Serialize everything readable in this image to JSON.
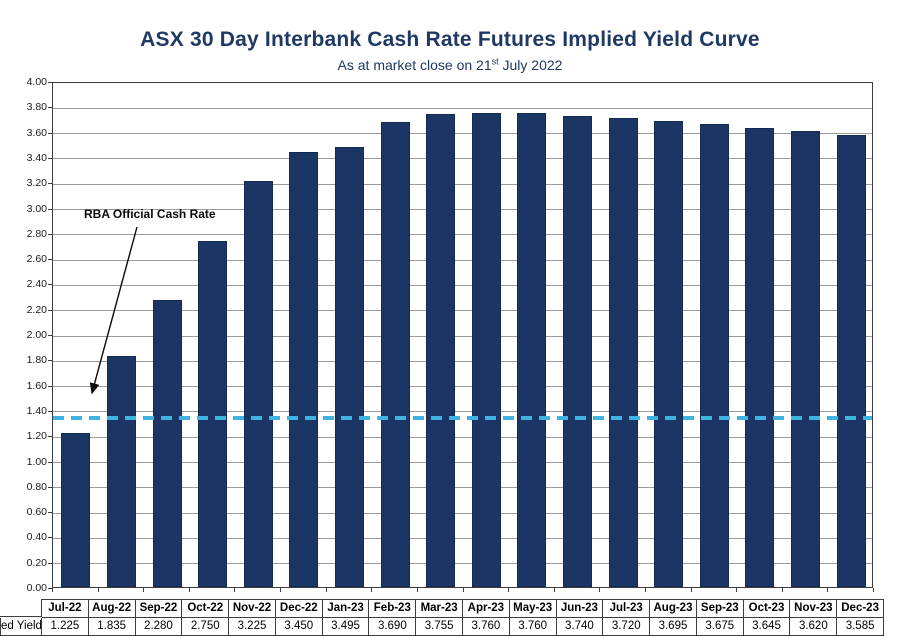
{
  "page": {
    "title": "ASX 30 Day Interbank Cash Rate Futures Implied Yield Curve",
    "subtitle_prefix": "As at market close on 21",
    "subtitle_sup": "st",
    "subtitle_suffix": " July 2022"
  },
  "table": {
    "row_label": "ed Yield"
  },
  "colors": {
    "bar": "#1B3665",
    "title": "#1F3864",
    "rba_line": "#41B3E1",
    "gridline": "#9B9B9B",
    "plot_border": "#3D3D3D"
  },
  "chart_data": {
    "type": "bar",
    "title": "ASX 30 Day Interbank Cash Rate Futures Implied Yield Curve",
    "subtitle": "As at market close on 21st July 2022",
    "categories": [
      "Jul-22",
      "Aug-22",
      "Sep-22",
      "Oct-22",
      "Nov-22",
      "Dec-22",
      "Jan-23",
      "Feb-23",
      "Mar-23",
      "Apr-23",
      "May-23",
      "Jun-23",
      "Jul-23",
      "Aug-23",
      "Sep-23",
      "Oct-23",
      "Nov-23",
      "Dec-23"
    ],
    "values": [
      1.225,
      1.835,
      2.28,
      2.75,
      3.225,
      3.45,
      3.495,
      3.69,
      3.755,
      3.76,
      3.76,
      3.74,
      3.72,
      3.695,
      3.675,
      3.645,
      3.62,
      3.585
    ],
    "series_name": "ed Yield",
    "xlabel": "",
    "ylabel": "",
    "ylim": [
      0,
      4.0
    ],
    "ytick_step": 0.2,
    "value_decimals": 3,
    "grid": true,
    "legend": false,
    "data_table_shown": true,
    "reference_line": {
      "label": "RBA Official Cash Rate",
      "value": 1.35,
      "style": "dashed",
      "color": "#41B3E1"
    }
  }
}
